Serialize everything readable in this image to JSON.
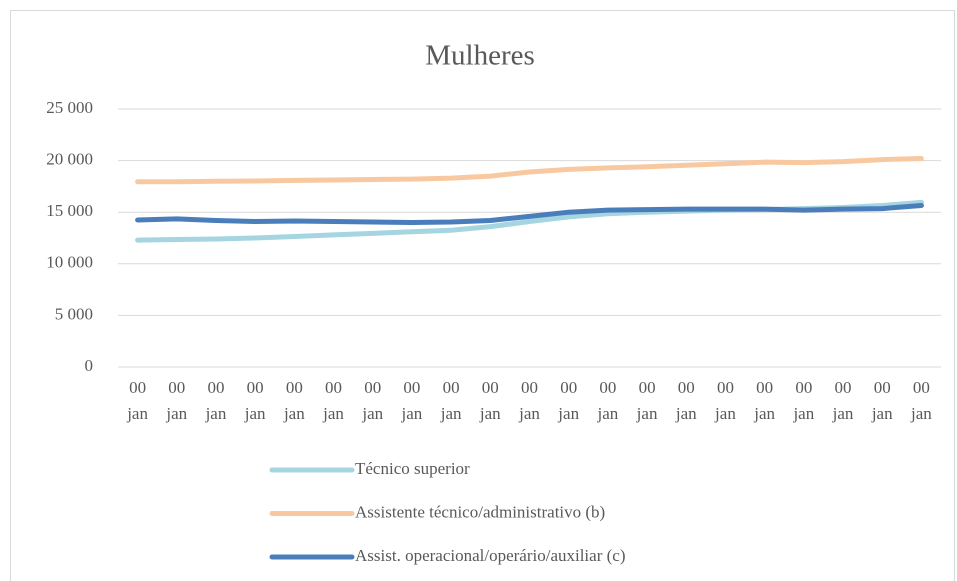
{
  "chart_data": {
    "type": "line",
    "title": "Mulheres",
    "categories": [
      "00 jan",
      "00 jan",
      "00 jan",
      "00 jan",
      "00 jan",
      "00 jan",
      "00 jan",
      "00 jan",
      "00 jan",
      "00 jan",
      "00 jan",
      "00 jan",
      "00 jan",
      "00 jan",
      "00 jan",
      "00 jan",
      "00 jan",
      "00 jan",
      "00 jan",
      "00 jan",
      "00 jan"
    ],
    "series": [
      {
        "name": "Técnico superior",
        "color": "#a5d5e0",
        "values": [
          12300,
          12350,
          12400,
          12500,
          12650,
          12800,
          12950,
          13100,
          13250,
          13600,
          14100,
          14550,
          14850,
          15000,
          15100,
          15200,
          15250,
          15350,
          15450,
          15650,
          15950
        ]
      },
      {
        "name": "Assistente técnico/administrativo (b)",
        "color": "#f8c9a0",
        "values": [
          17950,
          17950,
          18000,
          18020,
          18080,
          18120,
          18170,
          18200,
          18300,
          18500,
          18900,
          19150,
          19300,
          19400,
          19550,
          19700,
          19850,
          19800,
          19900,
          20100,
          20200
        ]
      },
      {
        "name": "Assist. operacional/operário/auxiliar (c)",
        "color": "#4a7ebb",
        "values": [
          14250,
          14350,
          14200,
          14100,
          14150,
          14100,
          14050,
          14000,
          14050,
          14200,
          14600,
          15000,
          15200,
          15250,
          15300,
          15300,
          15300,
          15200,
          15300,
          15350,
          15650
        ]
      }
    ],
    "ylim": [
      0,
      25000
    ],
    "yticks": [
      0,
      {
        "value": 5000,
        "label": "5 000"
      },
      {
        "value": 10000,
        "label": "10 000"
      },
      {
        "value": 15000,
        "label": "15 000"
      },
      {
        "value": 20000,
        "label": "20 000"
      },
      {
        "value": 25000,
        "label": "25 000"
      }
    ],
    "grid": true,
    "legend": "bottom"
  }
}
